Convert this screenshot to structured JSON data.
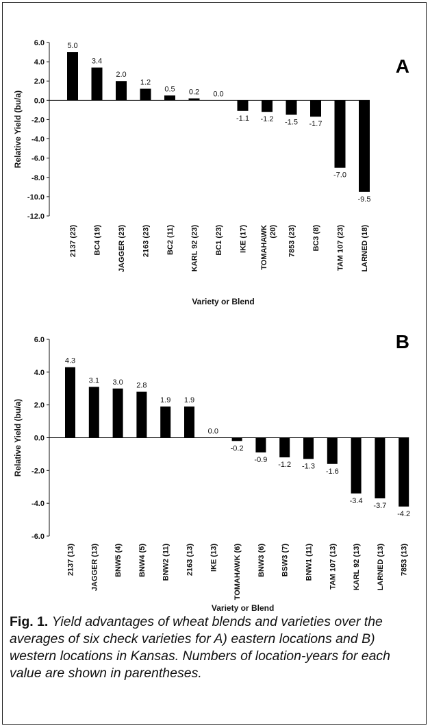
{
  "chart_data": [
    {
      "type": "bar",
      "panel_label": "A",
      "ylabel": "Relative Yield (bu/a)",
      "xlabel": "Variety or Blend",
      "ylim": [
        -12,
        6
      ],
      "yticks": [
        "6.0",
        "4.0",
        "2.0",
        "0.0",
        "-2.0",
        "-4.0",
        "-6.0",
        "-8.0",
        "-10.0",
        "-12.0"
      ],
      "categories": [
        "2137 (23)",
        "BC4 (19)",
        "JAGGER (23)",
        "2163 (23)",
        "BC2 (11)",
        "KARL 92 (23)",
        "BC1 (23)",
        "IKE (17)",
        "TOMAHAWK (20)",
        "7853 (23)",
        "BC3 (8)",
        "TAM 107 (23)",
        "LARNED (18)"
      ],
      "values": [
        5.0,
        3.4,
        2.0,
        1.2,
        0.5,
        0.2,
        0.0,
        -1.1,
        -1.2,
        -1.5,
        -1.7,
        -7.0,
        -9.5
      ],
      "value_labels": [
        "5.0",
        "3.4",
        "2.0",
        "1.2",
        "0.5",
        "0.2",
        "0.0",
        "-1.1",
        "-1.2",
        "-1.5",
        "-1.7",
        "-7.0",
        "-9.5"
      ],
      "bar_color": "#000000"
    },
    {
      "type": "bar",
      "panel_label": "B",
      "ylabel": "Relative Yield (bu/a)",
      "xlabel": "Variety or Blend",
      "ylim": [
        -6,
        6
      ],
      "yticks": [
        "6.0",
        "4.0",
        "2.0",
        "0.0",
        "-2.0",
        "-4.0",
        "-6.0"
      ],
      "categories": [
        "2137 (13)",
        "JAGGER (13)",
        "BNW5 (4)",
        "BNW4 (5)",
        "BNW2 (11)",
        "2163 (13)",
        "IKE (13)",
        "TOMAHAWK (6)",
        "BNW3 (6)",
        "BSW3 (7)",
        "BNW1 (11)",
        "TAM 107 (13)",
        "KARL 92 (13)",
        "LARNED (13)",
        "7853 (13)"
      ],
      "values": [
        4.3,
        3.1,
        3.0,
        2.8,
        1.9,
        1.9,
        0.0,
        -0.2,
        -0.9,
        -1.2,
        -1.3,
        -1.6,
        -3.4,
        -3.7,
        -4.2
      ],
      "value_labels": [
        "4.3",
        "3.1",
        "3.0",
        "2.8",
        "1.9",
        "1.9",
        "0.0",
        "-0.2",
        "-0.9",
        "-1.2",
        "-1.3",
        "-1.6",
        "-3.4",
        "-3.7",
        "-4.2"
      ],
      "bar_color": "#000000"
    }
  ],
  "caption": {
    "label": "Fig. 1.",
    "text": "Yield advantages of wheat blends and varieties over the averages of six check varieties for A) eastern locations and B) western locations in Kansas. Numbers of location-years for each value are shown in parentheses."
  }
}
